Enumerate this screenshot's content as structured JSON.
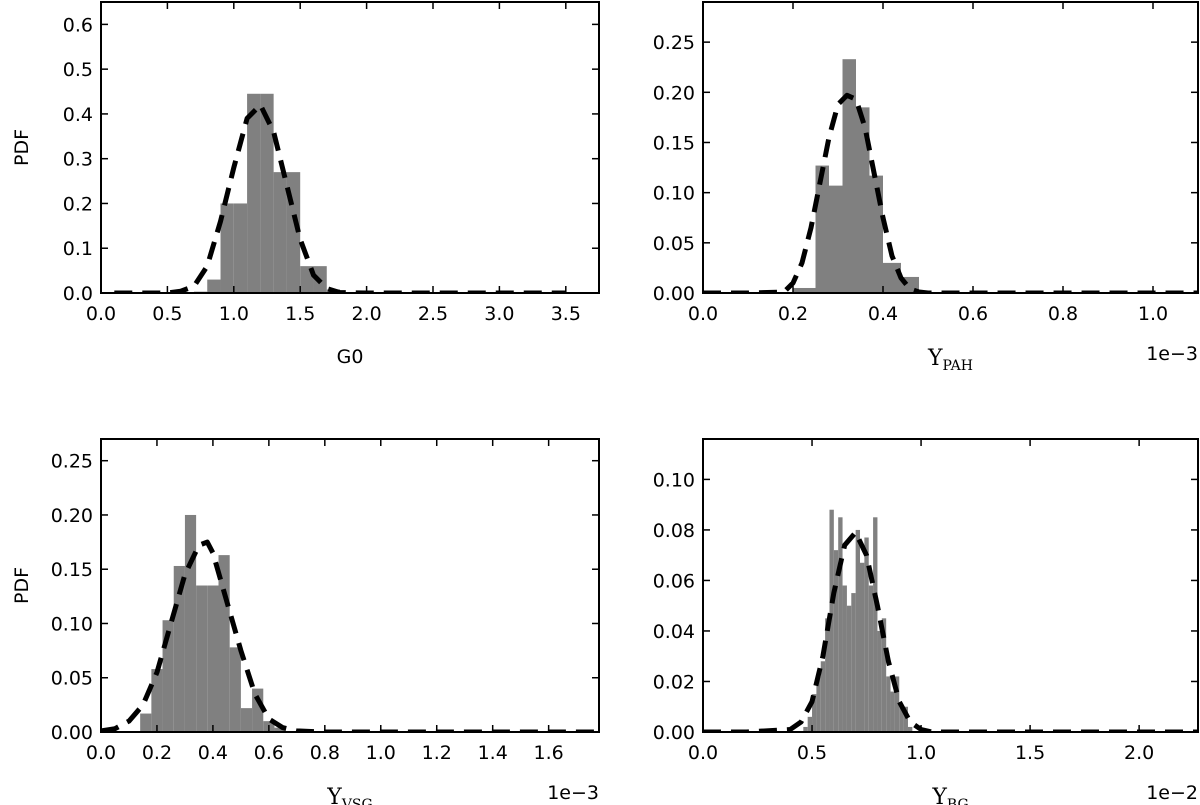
{
  "chart_data": [
    {
      "type": "bar",
      "xlabel": "G0",
      "ylabel": "PDF",
      "offset_text": "",
      "xlim": [
        0,
        3.75
      ],
      "ylim": [
        0,
        0.65
      ],
      "xticks": [
        0.0,
        0.5,
        1.0,
        1.5,
        2.0,
        2.5,
        3.0,
        3.5
      ],
      "xtick_labels": [
        "0.0",
        "0.5",
        "1.0",
        "1.5",
        "2.0",
        "2.5",
        "3.0",
        "3.5"
      ],
      "yticks": [
        0.0,
        0.1,
        0.2,
        0.3,
        0.4,
        0.5,
        0.6
      ],
      "ytick_labels": [
        "0.0",
        "0.1",
        "0.2",
        "0.3",
        "0.4",
        "0.5",
        "0.6"
      ],
      "histogram": {
        "bins": [
          [
            0.7,
            0.8
          ],
          [
            0.8,
            0.9
          ],
          [
            0.9,
            1.0
          ],
          [
            1.0,
            1.1
          ],
          [
            1.1,
            1.2
          ],
          [
            1.2,
            1.3
          ],
          [
            1.3,
            1.4
          ],
          [
            1.4,
            1.5
          ],
          [
            1.5,
            1.6
          ],
          [
            1.6,
            1.7
          ],
          [
            1.7,
            1.8
          ]
        ],
        "values": [
          0.003,
          0.03,
          0.2,
          0.2,
          0.445,
          0.445,
          0.27,
          0.27,
          0.06,
          0.06,
          0.008
        ]
      },
      "fit": {
        "x": [
          0.1,
          0.3,
          0.5,
          0.6,
          0.7,
          0.8,
          0.9,
          1.0,
          1.1,
          1.2,
          1.3,
          1.4,
          1.5,
          1.6,
          1.7,
          1.8,
          2.0,
          2.5,
          3.0,
          3.5
        ],
        "y": [
          0.0,
          0.0,
          0.0,
          0.004,
          0.015,
          0.06,
          0.16,
          0.28,
          0.39,
          0.42,
          0.36,
          0.24,
          0.12,
          0.04,
          0.01,
          0.001,
          0.0,
          0.0,
          0.0,
          0.0
        ]
      }
    },
    {
      "type": "bar",
      "xlabel": "Y",
      "xlabel_sub": "PAH",
      "ylabel": "",
      "offset_text": "1e−3",
      "xlim": [
        0,
        1.1
      ],
      "ylim": [
        0,
        0.29
      ],
      "xticks": [
        0.0,
        0.2,
        0.4,
        0.6,
        0.8,
        1.0
      ],
      "xtick_labels": [
        "0.0",
        "0.2",
        "0.4",
        "0.6",
        "0.8",
        "1.0"
      ],
      "yticks": [
        0.0,
        0.05,
        0.1,
        0.15,
        0.2,
        0.25
      ],
      "ytick_labels": [
        "0.00",
        "0.05",
        "0.10",
        "0.15",
        "0.20",
        "0.25"
      ],
      "histogram": {
        "bins": [
          [
            0.2,
            0.25
          ],
          [
            0.25,
            0.28
          ],
          [
            0.28,
            0.31
          ],
          [
            0.31,
            0.34
          ],
          [
            0.34,
            0.37
          ],
          [
            0.37,
            0.4
          ],
          [
            0.4,
            0.44
          ],
          [
            0.44,
            0.48
          ]
        ],
        "values": [
          0.005,
          0.127,
          0.107,
          0.233,
          0.185,
          0.117,
          0.03,
          0.016
        ]
      },
      "fit": {
        "x": [
          0.0,
          0.1,
          0.18,
          0.2,
          0.22,
          0.24,
          0.26,
          0.28,
          0.3,
          0.32,
          0.34,
          0.36,
          0.38,
          0.4,
          0.42,
          0.44,
          0.46,
          0.48,
          0.5,
          0.6,
          0.8,
          1.0,
          1.1
        ],
        "y": [
          0.0,
          0.0,
          0.001,
          0.01,
          0.03,
          0.065,
          0.11,
          0.155,
          0.188,
          0.197,
          0.193,
          0.165,
          0.12,
          0.075,
          0.037,
          0.015,
          0.004,
          0.001,
          0.0,
          0.0,
          0.0,
          0.0,
          0.0
        ]
      }
    },
    {
      "type": "bar",
      "xlabel": "Y",
      "xlabel_sub": "VSG",
      "ylabel": "PDF",
      "offset_text": "1e−3",
      "xlim": [
        0,
        1.78
      ],
      "ylim": [
        0,
        0.27
      ],
      "xticks": [
        0.0,
        0.2,
        0.4,
        0.6,
        0.8,
        1.0,
        1.2,
        1.4,
        1.6
      ],
      "xtick_labels": [
        "0.0",
        "0.2",
        "0.4",
        "0.6",
        "0.8",
        "1.0",
        "1.2",
        "1.4",
        "1.6"
      ],
      "yticks": [
        0.0,
        0.05,
        0.1,
        0.15,
        0.2,
        0.25
      ],
      "ytick_labels": [
        "0.00",
        "0.05",
        "0.10",
        "0.15",
        "0.20",
        "0.25"
      ],
      "histogram": {
        "bins": [
          [
            0.14,
            0.18
          ],
          [
            0.18,
            0.22
          ],
          [
            0.22,
            0.26
          ],
          [
            0.26,
            0.3
          ],
          [
            0.3,
            0.34
          ],
          [
            0.34,
            0.38
          ],
          [
            0.38,
            0.42
          ],
          [
            0.42,
            0.46
          ],
          [
            0.46,
            0.5
          ],
          [
            0.5,
            0.54
          ],
          [
            0.54,
            0.58
          ],
          [
            0.58,
            0.62
          ],
          [
            0.62,
            0.66
          ]
        ],
        "values": [
          0.017,
          0.058,
          0.103,
          0.153,
          0.2,
          0.135,
          0.135,
          0.163,
          0.078,
          0.022,
          0.04,
          0.01,
          0.004
        ]
      },
      "fit": {
        "x": [
          0.0,
          0.05,
          0.1,
          0.15,
          0.2,
          0.25,
          0.3,
          0.35,
          0.38,
          0.4,
          0.45,
          0.5,
          0.55,
          0.6,
          0.65,
          0.7,
          0.8,
          1.0,
          1.2,
          1.4,
          1.6,
          1.78
        ],
        "y": [
          0.001,
          0.003,
          0.01,
          0.025,
          0.055,
          0.1,
          0.145,
          0.172,
          0.175,
          0.165,
          0.12,
          0.075,
          0.035,
          0.012,
          0.004,
          0.001,
          0.0,
          0.0,
          0.0,
          0.0,
          0.0,
          0.0
        ]
      }
    },
    {
      "type": "bar",
      "xlabel": "Y",
      "xlabel_sub": "BG",
      "ylabel": "",
      "offset_text": "1e−2",
      "xlim": [
        0,
        2.27
      ],
      "ylim": [
        0,
        0.116
      ],
      "xticks": [
        0.0,
        0.5,
        1.0,
        1.5,
        2.0
      ],
      "xtick_labels": [
        "0.0",
        "0.5",
        "1.0",
        "1.5",
        "2.0"
      ],
      "yticks": [
        0.0,
        0.02,
        0.04,
        0.06,
        0.08,
        0.1
      ],
      "ytick_labels": [
        "0.00",
        "0.02",
        "0.04",
        "0.06",
        "0.08",
        "0.10"
      ],
      "histogram": {
        "bins": [
          [
            0.46,
            0.48
          ],
          [
            0.48,
            0.5
          ],
          [
            0.5,
            0.52
          ],
          [
            0.52,
            0.54
          ],
          [
            0.54,
            0.56
          ],
          [
            0.56,
            0.58
          ],
          [
            0.58,
            0.6
          ],
          [
            0.6,
            0.62
          ],
          [
            0.62,
            0.64
          ],
          [
            0.64,
            0.66
          ],
          [
            0.66,
            0.68
          ],
          [
            0.68,
            0.7
          ],
          [
            0.7,
            0.72
          ],
          [
            0.72,
            0.74
          ],
          [
            0.74,
            0.76
          ],
          [
            0.76,
            0.78
          ],
          [
            0.78,
            0.8
          ],
          [
            0.8,
            0.82
          ],
          [
            0.82,
            0.84
          ],
          [
            0.84,
            0.86
          ],
          [
            0.86,
            0.88
          ],
          [
            0.88,
            0.9
          ],
          [
            0.9,
            0.92
          ],
          [
            0.92,
            0.94
          ],
          [
            0.94,
            0.96
          ]
        ],
        "values": [
          0.002,
          0.006,
          0.015,
          0.022,
          0.028,
          0.045,
          0.088,
          0.072,
          0.085,
          0.058,
          0.05,
          0.055,
          0.08,
          0.067,
          0.077,
          0.058,
          0.085,
          0.04,
          0.045,
          0.022,
          0.016,
          0.022,
          0.01,
          0.01,
          0.002
        ]
      },
      "fit": {
        "x": [
          0.0,
          0.2,
          0.4,
          0.45,
          0.5,
          0.55,
          0.6,
          0.65,
          0.7,
          0.75,
          0.8,
          0.85,
          0.9,
          0.95,
          1.0,
          1.05,
          1.2,
          1.5,
          2.0,
          2.27
        ],
        "y": [
          0.0,
          0.0,
          0.001,
          0.004,
          0.012,
          0.03,
          0.055,
          0.074,
          0.079,
          0.07,
          0.05,
          0.028,
          0.012,
          0.004,
          0.001,
          0.0,
          0.0,
          0.0,
          0.0,
          0.0
        ]
      }
    }
  ],
  "colors": {
    "bar": "#808080",
    "fit_line": "#000000",
    "axes": "#000000"
  }
}
